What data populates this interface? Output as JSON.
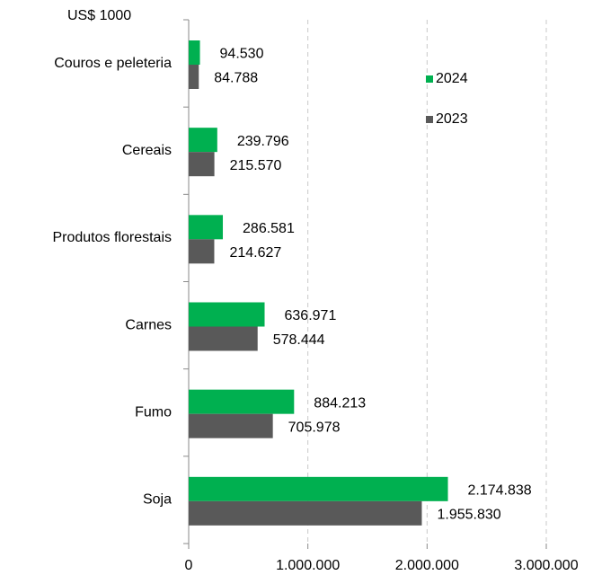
{
  "chart_data": {
    "type": "hbar",
    "unit_label": "US$ 1000",
    "categories": [
      "Couros e peleteria",
      "Cereais",
      "Produtos florestais",
      "Carnes",
      "Fumo",
      "Soja"
    ],
    "series": [
      {
        "name": "2024",
        "color": "#00b050",
        "values": [
          94530,
          239796,
          286581,
          636971,
          884213,
          2174838
        ],
        "value_labels": [
          "94.530",
          "239.796",
          "286.581",
          "636.971",
          "884.213",
          "2.174.838"
        ]
      },
      {
        "name": "2023",
        "color": "#595959",
        "values": [
          84788,
          215570,
          214627,
          578444,
          705978,
          1955830
        ],
        "value_labels": [
          "84.788",
          "215.570",
          "214.627",
          "578.444",
          "705.978",
          "1.955.830"
        ]
      }
    ],
    "xlim": [
      0,
      3000000
    ],
    "xticks": [
      0,
      {
        "value": 1000000,
        "label": "1.000.000"
      },
      {
        "value": 2000000,
        "label": "2.000.000"
      },
      {
        "value": 3000000,
        "label": "3.000.000"
      }
    ],
    "grid": true,
    "legend": "right"
  }
}
